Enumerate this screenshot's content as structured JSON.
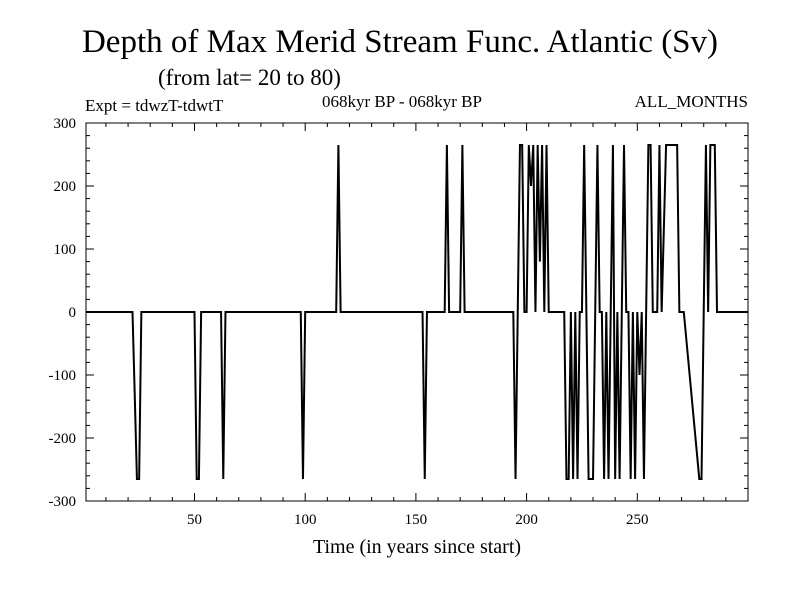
{
  "chart_data": {
    "type": "line",
    "title": "Depth of Max Merid Stream Func. Atlantic (Sv)",
    "subtitle": "(from lat= 20 to 80)",
    "header_left": "Expt = tdwzT-tdwtT",
    "header_center": "068kyr BP - 068kyr BP",
    "header_right": "ALL_MONTHS",
    "xlabel": "Time (in years since start)",
    "ylabel": "",
    "xlim": [
      1,
      300
    ],
    "ylim": [
      -300,
      300
    ],
    "xticks": [
      50,
      100,
      150,
      200,
      250
    ],
    "yticks": [
      -300,
      -200,
      -100,
      0,
      100,
      200,
      300
    ],
    "xtick_labels": [
      "50",
      "100",
      "150",
      "200",
      "250"
    ],
    "ytick_labels": [
      "-300",
      "-200",
      "-100",
      "0",
      "100",
      "200",
      "300"
    ],
    "grid": false,
    "line_color": "#000000",
    "series": [
      {
        "x": [
          1,
          22,
          23,
          24,
          25,
          26,
          50,
          51,
          52,
          53,
          62,
          63,
          64,
          98,
          99,
          100,
          114,
          115,
          116,
          153,
          154,
          155,
          163,
          164,
          165,
          170,
          171,
          172,
          194,
          195,
          196,
          197,
          198,
          199,
          200,
          201,
          202,
          203,
          204,
          205,
          206,
          207,
          208,
          209,
          210,
          217,
          218,
          219,
          220,
          221,
          222,
          223,
          224,
          225,
          226,
          227,
          228,
          229,
          230,
          231,
          232,
          233,
          234,
          235,
          236,
          237,
          238,
          239,
          240,
          241,
          242,
          243,
          244,
          245,
          246,
          247,
          248,
          249,
          250,
          251,
          252,
          253,
          254,
          255,
          256,
          257,
          258,
          259,
          260,
          261,
          263,
          264,
          265,
          266,
          267,
          268,
          269,
          270,
          271,
          278,
          279,
          280,
          281,
          282,
          283,
          284,
          285,
          286,
          287,
          288,
          289,
          300
        ],
        "y": [
          0,
          0,
          -130,
          -265,
          -265,
          0,
          0,
          -265,
          -265,
          0,
          0,
          -265,
          0,
          0,
          -265,
          0,
          0,
          265,
          0,
          0,
          -265,
          0,
          0,
          265,
          0,
          0,
          265,
          0,
          0,
          -265,
          0,
          265,
          265,
          0,
          0,
          265,
          200,
          265,
          0,
          265,
          80,
          265,
          0,
          265,
          0,
          0,
          -265,
          -265,
          0,
          -265,
          0,
          -265,
          0,
          0,
          265,
          0,
          -265,
          -265,
          -265,
          0,
          265,
          0,
          0,
          -265,
          0,
          -265,
          0,
          265,
          -265,
          0,
          -265,
          0,
          265,
          0,
          0,
          -265,
          0,
          -265,
          0,
          -100,
          0,
          -265,
          0,
          265,
          265,
          0,
          0,
          0,
          265,
          0,
          265,
          265,
          265,
          265,
          265,
          265,
          0,
          0,
          0,
          -265,
          -265,
          0,
          265,
          0,
          265,
          265,
          265,
          0,
          0,
          0,
          0,
          0
        ]
      }
    ]
  }
}
